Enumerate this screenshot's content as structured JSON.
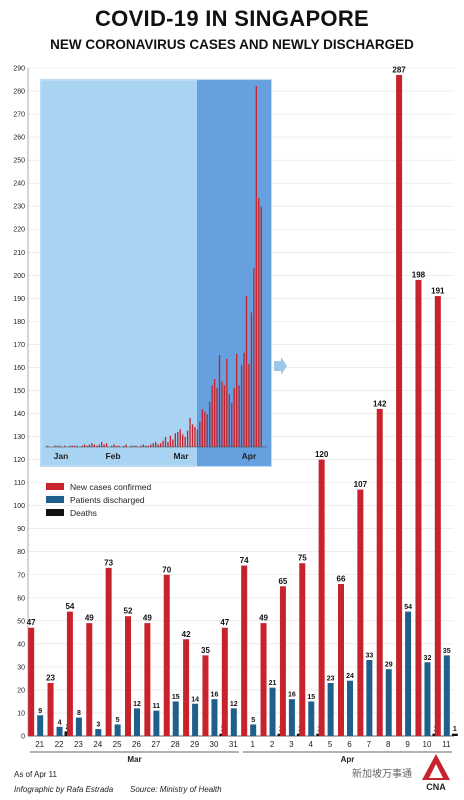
{
  "header": {
    "title": "COVID-19 IN SINGAPORE",
    "subtitle": "NEW CORONAVIRUS CASES AND NEWLY DISCHARGED"
  },
  "footer": {
    "as_of": "As of Apr 11",
    "credit": "Infographic by Rafa Estrada",
    "source": "Source: Ministry of Health"
  },
  "branding": {
    "logo_text": "CNA",
    "watermark": "新加坡万事通"
  },
  "colors": {
    "new_cases": "#c8232c",
    "discharged": "#1f5f8b",
    "deaths": "#111111",
    "inset_light": "#a9d3f3",
    "inset_dark": "#5b96db"
  },
  "chart_data": [
    {
      "type": "bar",
      "title": "NEW CORONAVIRUS CASES AND NEWLY DISCHARGED",
      "categories": [
        "21",
        "22",
        "23",
        "24",
        "25",
        "26",
        "27",
        "28",
        "29",
        "30",
        "31",
        "1",
        "2",
        "3",
        "4",
        "5",
        "6",
        "7",
        "8",
        "9",
        "10",
        "11"
      ],
      "month_labels": [
        {
          "label": "Mar",
          "from": 0,
          "to": 10
        },
        {
          "label": "Apr",
          "from": 11,
          "to": 21
        }
      ],
      "ylim": [
        0,
        290
      ],
      "yticks": [
        0,
        10,
        20,
        30,
        40,
        50,
        60,
        70,
        80,
        90,
        100,
        110,
        120,
        130,
        140,
        150,
        160,
        170,
        180,
        190,
        200,
        210,
        220,
        230,
        240,
        250,
        260,
        270,
        280,
        290
      ],
      "grid": true,
      "legend_position": "middle-left",
      "series": [
        {
          "name": "New cases confirmed",
          "color_key": "new_cases",
          "values": [
            47,
            23,
            54,
            49,
            73,
            52,
            49,
            70,
            42,
            35,
            47,
            74,
            49,
            65,
            75,
            120,
            66,
            107,
            142,
            287,
            198,
            191
          ]
        },
        {
          "name": "Patients discharged",
          "color_key": "discharged",
          "values": [
            9,
            4,
            8,
            3,
            5,
            12,
            11,
            15,
            14,
            16,
            12,
            5,
            21,
            16,
            15,
            23,
            24,
            33,
            29,
            54,
            32,
            35
          ]
        },
        {
          "name": "Deaths",
          "color_key": "deaths",
          "values": [
            0,
            2,
            0,
            0,
            0,
            0,
            0,
            0,
            0,
            1,
            0,
            0,
            1,
            1,
            1,
            0,
            0,
            0,
            0,
            0,
            1,
            1
          ]
        }
      ],
      "data_labels": [
        [
          47,
          23,
          54,
          49,
          73,
          52,
          49,
          70,
          42,
          35,
          47,
          74,
          49,
          65,
          75,
          120,
          66,
          107,
          142,
          287,
          198,
          191
        ],
        [
          9,
          4,
          8,
          3,
          5,
          12,
          11,
          15,
          14,
          16,
          12,
          5,
          21,
          16,
          15,
          23,
          24,
          33,
          29,
          54,
          32,
          35
        ],
        [
          null,
          2,
          null,
          null,
          null,
          null,
          null,
          null,
          null,
          1,
          null,
          null,
          1,
          1,
          1,
          null,
          null,
          null,
          null,
          null,
          1,
          1
        ]
      ]
    },
    {
      "type": "bar",
      "description_inset": "daily new cases since January",
      "x_labels": [
        "Jan",
        "Feb",
        "Mar",
        "Apr"
      ],
      "highlight_range_label": "Apr",
      "values": [
        1,
        0,
        0,
        1,
        1,
        1,
        0,
        1,
        0,
        1,
        1,
        1,
        1,
        0,
        1,
        2,
        1,
        2,
        3,
        2,
        1,
        2,
        4,
        2,
        3,
        0,
        1,
        2,
        1,
        1,
        0,
        1,
        2,
        0,
        1,
        1,
        1,
        0,
        1,
        2,
        1,
        1,
        2,
        3,
        4,
        2,
        3,
        5,
        8,
        4,
        9,
        6,
        11,
        12,
        14,
        10,
        8,
        13,
        23,
        18,
        16,
        14,
        20,
        30,
        28,
        26,
        36,
        49,
        54,
        47,
        73,
        52,
        49,
        70,
        42,
        35,
        47,
        74,
        49,
        65,
        75,
        120,
        66,
        107,
        142,
        287,
        198,
        191
      ]
    }
  ]
}
